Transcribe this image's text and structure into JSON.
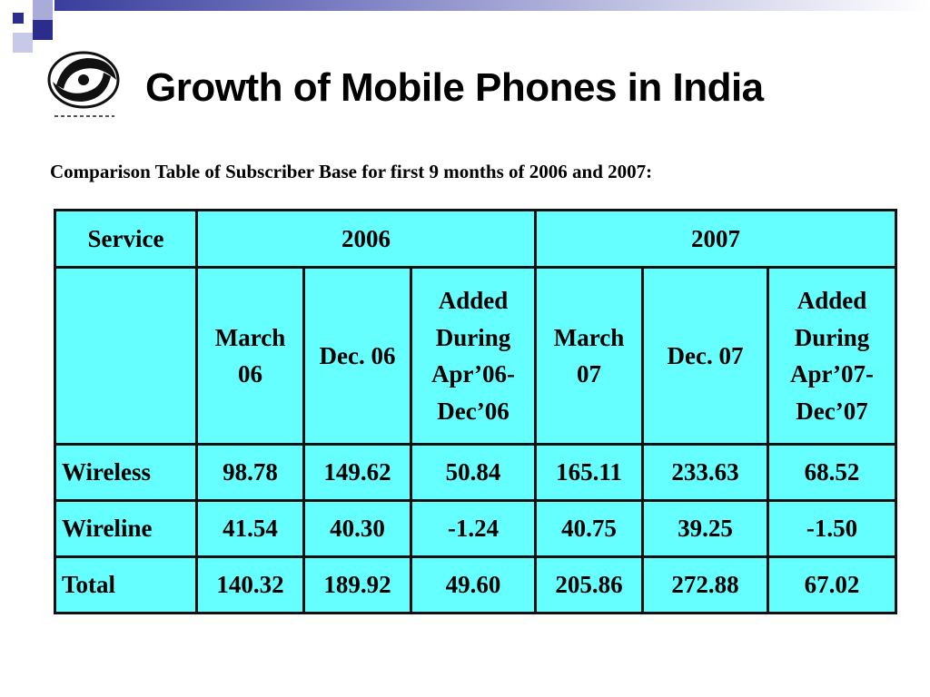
{
  "slide": {
    "title": "Growth of Mobile Phones in India",
    "subtitle": "Comparison Table of Subscriber Base for first 9 months of 2006 and 2007:",
    "logo_icon": "doordarshan-logo",
    "accent_color": "#2b2d8c",
    "table_bg_color": "#66ffff"
  },
  "table": {
    "header_service": "Service",
    "year_2006": "2006",
    "year_2007": "2007",
    "subheaders": [
      "March 06",
      "Dec. 06",
      "Added During Apr’06-Dec’06",
      "March 07",
      "Dec. 07",
      "Added During Apr’07-Dec’07"
    ],
    "rows": [
      {
        "service": "Wireless",
        "values": [
          "98.78",
          "149.62",
          "50.84",
          "165.11",
          "233.63",
          "68.52"
        ]
      },
      {
        "service": "Wireline",
        "values": [
          "41.54",
          "40.30",
          "-1.24",
          "40.75",
          "39.25",
          "-1.50"
        ]
      },
      {
        "service": "Total",
        "values": [
          "140.32",
          "189.92",
          "49.60",
          "205.86",
          "272.88",
          "67.02"
        ]
      }
    ]
  }
}
